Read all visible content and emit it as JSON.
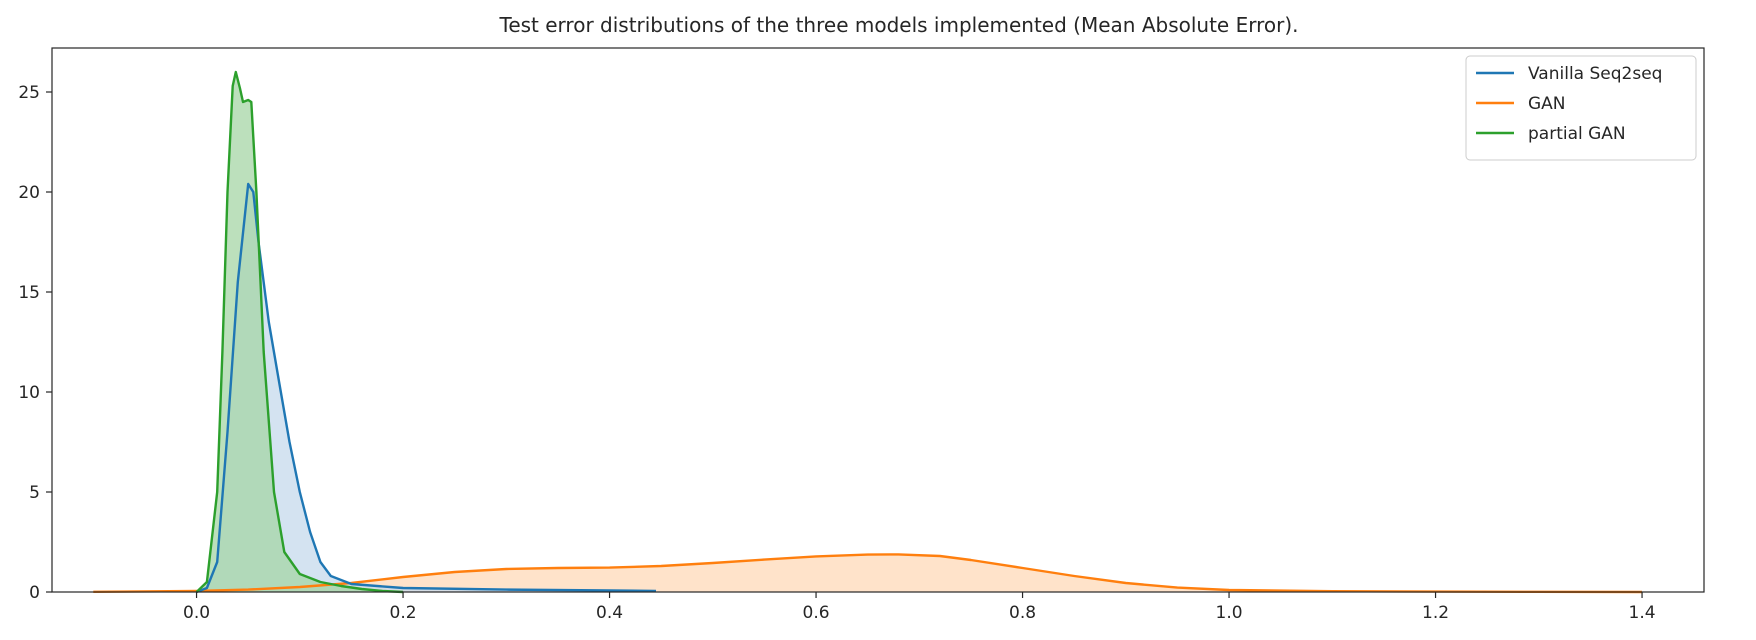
{
  "chart_data": {
    "type": "area",
    "title": "Test error distributions of the three models implemented (Mean Absolute Error).",
    "xlim": [
      -0.14,
      1.46
    ],
    "ylim": [
      0,
      27.2
    ],
    "x_ticks": [
      0.0,
      0.2,
      0.4,
      0.6,
      0.8,
      1.0,
      1.2,
      1.4
    ],
    "x_tick_labels": [
      "0.0",
      "0.2",
      "0.4",
      "0.6",
      "0.8",
      "1.0",
      "1.2",
      "1.4"
    ],
    "y_ticks": [
      0,
      5,
      10,
      15,
      20,
      25
    ],
    "y_tick_labels": [
      "0",
      "5",
      "10",
      "15",
      "20",
      "25"
    ],
    "grid": false,
    "legend_position": "top-right",
    "series": [
      {
        "name": "Vanilla Seq2seq",
        "color": "#1f77b4",
        "fill": "#c5d9ec",
        "points": [
          [
            0.0,
            0
          ],
          [
            0.01,
            0.2
          ],
          [
            0.02,
            1.5
          ],
          [
            0.03,
            8
          ],
          [
            0.04,
            15.5
          ],
          [
            0.05,
            20.4
          ],
          [
            0.055,
            20.0
          ],
          [
            0.06,
            17.5
          ],
          [
            0.07,
            13.5
          ],
          [
            0.08,
            10.5
          ],
          [
            0.09,
            7.5
          ],
          [
            0.1,
            5
          ],
          [
            0.11,
            3
          ],
          [
            0.12,
            1.5
          ],
          [
            0.13,
            0.8
          ],
          [
            0.15,
            0.4
          ],
          [
            0.2,
            0.2
          ],
          [
            0.3,
            0.12
          ],
          [
            0.4,
            0.08
          ],
          [
            0.445,
            0.05
          ]
        ]
      },
      {
        "name": "GAN",
        "color": "#ff7f0e",
        "fill": "#ffd9b8",
        "points": [
          [
            -0.1,
            0.01
          ],
          [
            0.0,
            0.05
          ],
          [
            0.05,
            0.12
          ],
          [
            0.1,
            0.25
          ],
          [
            0.15,
            0.45
          ],
          [
            0.2,
            0.75
          ],
          [
            0.25,
            1.0
          ],
          [
            0.3,
            1.15
          ],
          [
            0.35,
            1.2
          ],
          [
            0.4,
            1.22
          ],
          [
            0.45,
            1.3
          ],
          [
            0.5,
            1.45
          ],
          [
            0.55,
            1.62
          ],
          [
            0.6,
            1.78
          ],
          [
            0.65,
            1.87
          ],
          [
            0.68,
            1.88
          ],
          [
            0.72,
            1.8
          ],
          [
            0.75,
            1.6
          ],
          [
            0.8,
            1.2
          ],
          [
            0.85,
            0.8
          ],
          [
            0.9,
            0.45
          ],
          [
            0.95,
            0.22
          ],
          [
            1.0,
            0.1
          ],
          [
            1.1,
            0.04
          ],
          [
            1.2,
            0.02
          ],
          [
            1.3,
            0.01
          ],
          [
            1.4,
            0.0
          ]
        ]
      },
      {
        "name": "partial GAN",
        "color": "#2ca02c",
        "fill": "#a5d6a5",
        "points": [
          [
            0.0,
            0
          ],
          [
            0.01,
            0.5
          ],
          [
            0.02,
            5
          ],
          [
            0.025,
            12
          ],
          [
            0.03,
            20
          ],
          [
            0.035,
            25.3
          ],
          [
            0.038,
            26.0
          ],
          [
            0.042,
            25.2
          ],
          [
            0.045,
            24.5
          ],
          [
            0.05,
            24.6
          ],
          [
            0.053,
            24.5
          ],
          [
            0.058,
            20
          ],
          [
            0.065,
            12
          ],
          [
            0.075,
            5
          ],
          [
            0.085,
            2
          ],
          [
            0.1,
            0.9
          ],
          [
            0.12,
            0.5
          ],
          [
            0.14,
            0.3
          ],
          [
            0.16,
            0.15
          ],
          [
            0.18,
            0.05
          ],
          [
            0.2,
            0.0
          ]
        ]
      }
    ]
  }
}
